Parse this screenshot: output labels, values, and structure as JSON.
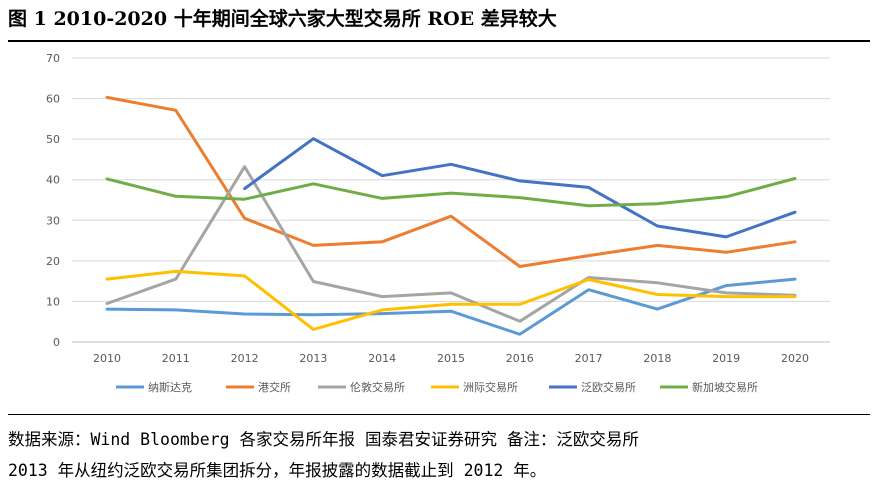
{
  "figure_title": "图 1 2010-2020 十年期间全球六家大型交易所 ROE 差异较大",
  "source_note": {
    "line1": "数据来源：Wind Bloomberg 各家交易所年报 国泰君安证券研究 备注：泛欧交易所",
    "line2": "2013 年从纽约泛欧交易所集团拆分，年报披露的数据截止到 2012 年。"
  },
  "chart_data": {
    "type": "line",
    "title": "",
    "xlabel": "",
    "ylabel": "",
    "ylim": [
      0,
      70
    ],
    "yticks": [
      0,
      10,
      20,
      30,
      40,
      50,
      60,
      70
    ],
    "grid": true,
    "legend_position": "bottom",
    "categories": [
      "2010",
      "2011",
      "2012",
      "2013",
      "2014",
      "2015",
      "2016",
      "2017",
      "2018",
      "2019",
      "2020"
    ],
    "series": [
      {
        "name": "纳斯达克",
        "color": "#5B9BD5",
        "values": [
          8.1,
          7.9,
          6.9,
          6.7,
          7.0,
          7.6,
          1.9,
          12.9,
          8.1,
          13.9,
          15.5
        ]
      },
      {
        "name": "港交所",
        "color": "#ED7D31",
        "values": [
          60.3,
          57.1,
          30.5,
          23.8,
          24.7,
          31.0,
          18.6,
          21.3,
          23.8,
          22.1,
          24.7
        ]
      },
      {
        "name": "伦敦交易所",
        "color": "#A5A5A5",
        "values": [
          9.5,
          15.5,
          43.2,
          14.9,
          11.2,
          12.1,
          5.1,
          15.9,
          14.6,
          12.1,
          11.5
        ]
      },
      {
        "name": "洲际交易所",
        "color": "#FFC000",
        "values": [
          15.5,
          17.4,
          16.3,
          3.1,
          7.9,
          9.3,
          9.3,
          15.4,
          11.7,
          11.2,
          11.2
        ]
      },
      {
        "name": "泛欧交易所",
        "color": "#4472C4",
        "values": [
          null,
          null,
          37.8,
          50.1,
          41.0,
          43.8,
          39.7,
          38.1,
          28.6,
          25.9,
          32.0
        ]
      },
      {
        "name": "新加坡交易所",
        "color": "#70AD47",
        "values": [
          40.2,
          35.9,
          35.2,
          39.0,
          35.4,
          36.7,
          35.6,
          33.6,
          34.1,
          35.8,
          40.3
        ]
      }
    ]
  }
}
